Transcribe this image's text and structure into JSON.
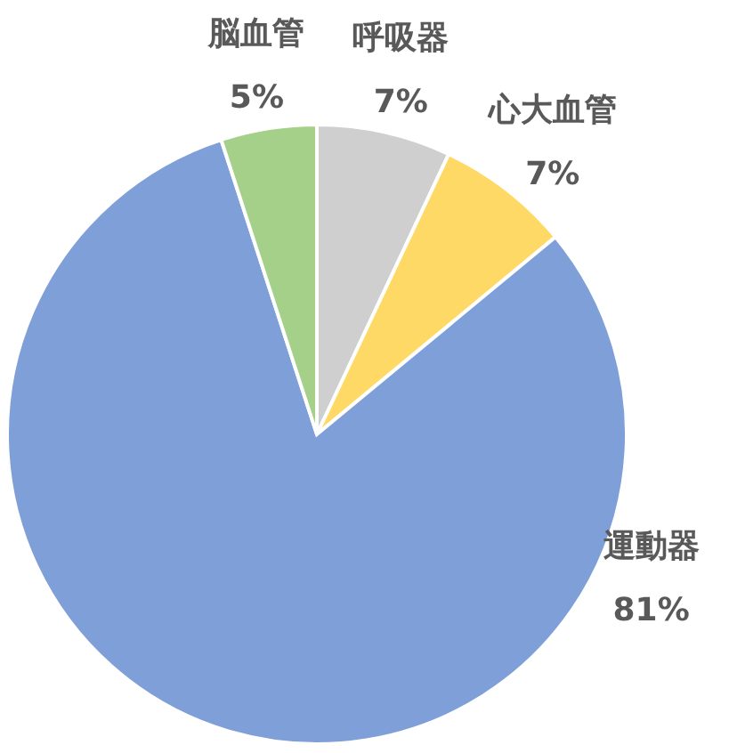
{
  "chart_data": {
    "type": "pie",
    "categories": [
      "呼吸器",
      "心大血管",
      "運動器",
      "脳血管"
    ],
    "values": [
      7,
      7,
      81,
      5
    ],
    "colors": [
      "#cfcfcf",
      "#ffd966",
      "#7f9fd8",
      "#a4d08a"
    ],
    "value_labels": [
      "7%",
      "7%",
      "81%",
      "5%"
    ]
  }
}
